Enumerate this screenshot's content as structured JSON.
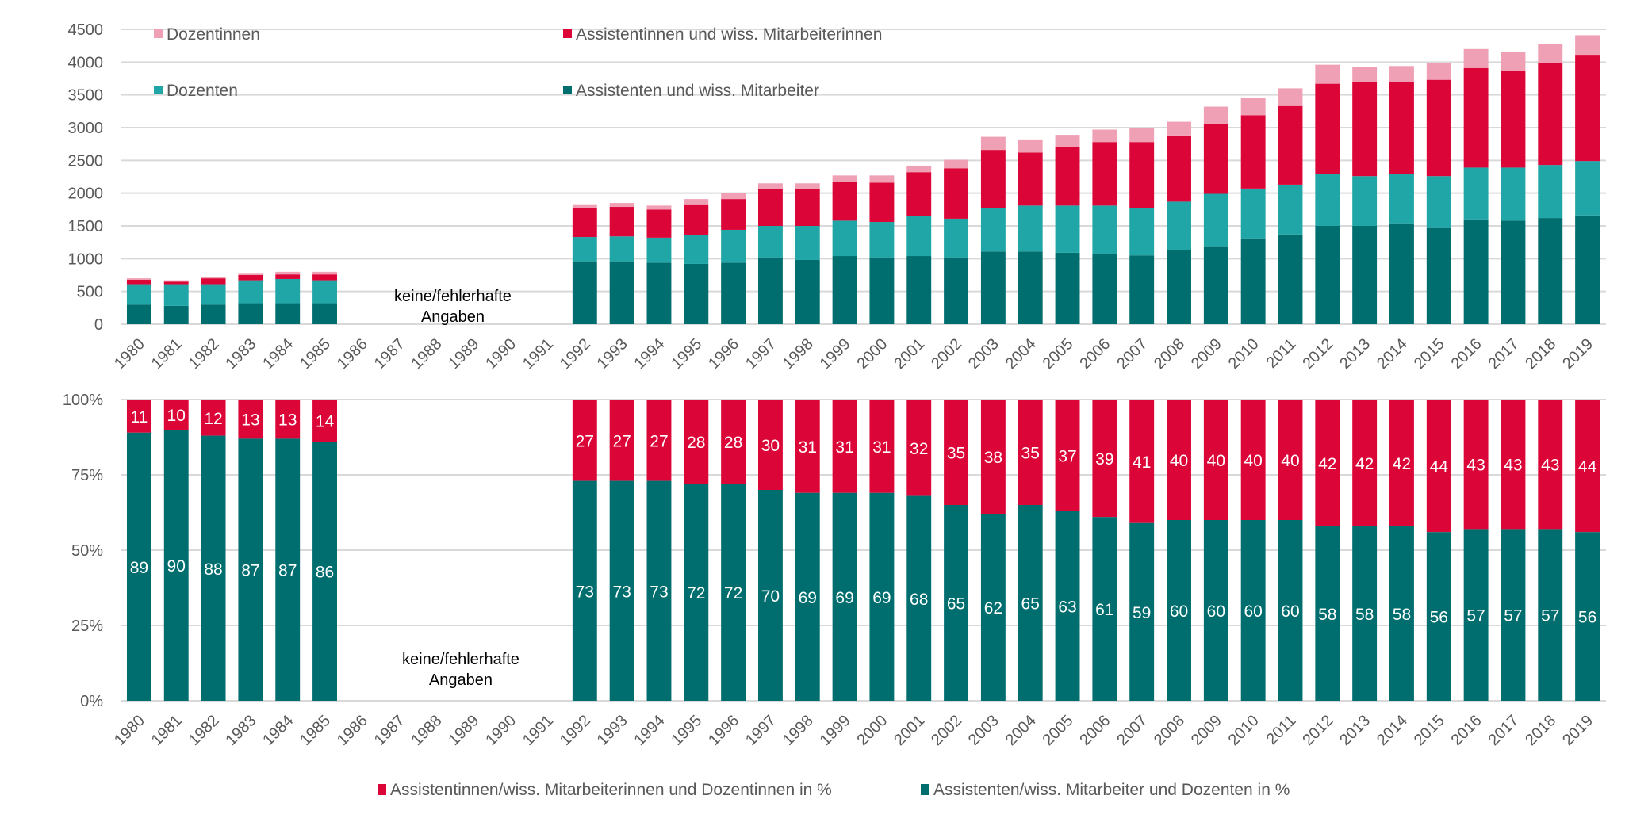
{
  "chart_data": [
    {
      "type": "bar",
      "stacked": true,
      "title": "",
      "xlabel": "",
      "ylabel": "",
      "ylim": [
        0,
        4500
      ],
      "yticks": [
        "0",
        "500",
        "1000",
        "1500",
        "2000",
        "2500",
        "3000",
        "3500",
        "4000",
        "4500"
      ],
      "grid": true,
      "legend_position": "top-left (inside plot)",
      "categories": [
        "1980",
        "1981",
        "1982",
        "1983",
        "1984",
        "1985",
        "1986",
        "1987",
        "1988",
        "1989",
        "1990",
        "1991",
        "1992",
        "1993",
        "1994",
        "1995",
        "1996",
        "1997",
        "1998",
        "1999",
        "2000",
        "2001",
        "2002",
        "2003",
        "2004",
        "2005",
        "2006",
        "2007",
        "2008",
        "2009",
        "2010",
        "2011",
        "2012",
        "2013",
        "2014",
        "2015",
        "2016",
        "2017",
        "2018",
        "2019"
      ],
      "series": [
        {
          "name": "Assistenten und wiss. Mitarbeiter",
          "color": "#006e6e",
          "values": [
            300,
            280,
            300,
            320,
            320,
            320,
            null,
            null,
            null,
            null,
            null,
            null,
            960,
            960,
            940,
            920,
            940,
            1020,
            980,
            1040,
            1020,
            1040,
            1020,
            1110,
            1110,
            1090,
            1070,
            1050,
            1130,
            1190,
            1310,
            1370,
            1500,
            1500,
            1540,
            1480,
            1600,
            1580,
            1620,
            1660
          ]
        },
        {
          "name": "Dozenten",
          "color": "#20a6a6",
          "values": [
            310,
            330,
            310,
            350,
            370,
            350,
            null,
            null,
            null,
            null,
            null,
            null,
            370,
            380,
            380,
            440,
            500,
            480,
            520,
            540,
            540,
            610,
            590,
            660,
            700,
            720,
            740,
            720,
            740,
            800,
            760,
            760,
            790,
            760,
            750,
            780,
            790,
            810,
            810,
            830
          ]
        },
        {
          "name": "Assistentinnen und wiss. Mitarbeiterinnen",
          "color": "#dc0538",
          "values": [
            70,
            40,
            90,
            80,
            70,
            90,
            null,
            null,
            null,
            null,
            null,
            null,
            440,
            450,
            430,
            470,
            470,
            560,
            560,
            600,
            600,
            670,
            770,
            890,
            810,
            890,
            970,
            1010,
            1010,
            1060,
            1120,
            1200,
            1380,
            1430,
            1400,
            1470,
            1520,
            1480,
            1560,
            1610
          ]
        },
        {
          "name": "Dozentinnen",
          "color": "#f0a0b4",
          "values": [
            20,
            20,
            20,
            20,
            40,
            40,
            null,
            null,
            null,
            null,
            null,
            null,
            60,
            60,
            60,
            80,
            90,
            90,
            90,
            90,
            110,
            100,
            130,
            200,
            200,
            190,
            190,
            210,
            210,
            270,
            270,
            270,
            290,
            230,
            250,
            260,
            290,
            280,
            290,
            310
          ]
        }
      ],
      "annotations": [
        {
          "text": "keine/fehlerhafte Angaben",
          "span": [
            "1986",
            "1991"
          ]
        }
      ]
    },
    {
      "type": "bar",
      "stacked": true,
      "percent": true,
      "title": "",
      "xlabel": "",
      "ylabel": "",
      "ylim": [
        0,
        100
      ],
      "yticks": [
        "0%",
        "25%",
        "50%",
        "75%",
        "100%"
      ],
      "grid": true,
      "legend_position": "bottom",
      "categories": [
        "1980",
        "1981",
        "1982",
        "1983",
        "1984",
        "1985",
        "1986",
        "1987",
        "1988",
        "1989",
        "1990",
        "1991",
        "1992",
        "1993",
        "1994",
        "1995",
        "1996",
        "1997",
        "1998",
        "1999",
        "2000",
        "2001",
        "2002",
        "2003",
        "2004",
        "2005",
        "2006",
        "2007",
        "2008",
        "2009",
        "2010",
        "2011",
        "2012",
        "2013",
        "2014",
        "2015",
        "2016",
        "2017",
        "2018",
        "2019"
      ],
      "series": [
        {
          "name": "Assistenten/wiss. Mitarbeiter und Dozenten in %",
          "color": "#006e6e",
          "values": [
            89,
            90,
            88,
            87,
            87,
            86,
            null,
            null,
            null,
            null,
            null,
            null,
            73,
            73,
            73,
            72,
            72,
            70,
            69,
            69,
            69,
            68,
            65,
            62,
            65,
            63,
            61,
            59,
            60,
            60,
            60,
            60,
            58,
            58,
            58,
            56,
            57,
            57,
            57,
            56
          ]
        },
        {
          "name": "Assistentinnen/wiss. Mitarbeiterinnen und Dozentinnen in %",
          "color": "#dc0538",
          "values": [
            11,
            10,
            12,
            13,
            13,
            14,
            null,
            null,
            null,
            null,
            null,
            null,
            27,
            27,
            27,
            28,
            28,
            30,
            31,
            31,
            31,
            32,
            35,
            38,
            35,
            37,
            39,
            41,
            40,
            40,
            40,
            40,
            42,
            42,
            42,
            44,
            43,
            43,
            43,
            44
          ]
        }
      ],
      "data_labels": true,
      "annotations": [
        {
          "text": "keine/fehlerhafte Angaben",
          "span": [
            "1986",
            "1991"
          ]
        }
      ]
    }
  ],
  "labels": {
    "note_line1": "keine/fehlerhafte",
    "note_line2": "Angaben",
    "top_legend": [
      {
        "label": "Dozentinnen",
        "color": "#f0a0b4"
      },
      {
        "label": "Assistentinnen und wiss. Mitarbeiterinnen",
        "color": "#dc0538"
      },
      {
        "label": "Dozenten",
        "color": "#20a6a6"
      },
      {
        "label": "Assistenten und wiss. Mitarbeiter",
        "color": "#006e6e"
      }
    ],
    "bottom_legend": [
      {
        "label": "Assistentinnen/wiss. Mitarbeiterinnen und Dozentinnen in %",
        "color": "#dc0538"
      },
      {
        "label": "Assistenten/wiss. Mitarbeiter und Dozenten in %",
        "color": "#006e6e"
      }
    ]
  }
}
